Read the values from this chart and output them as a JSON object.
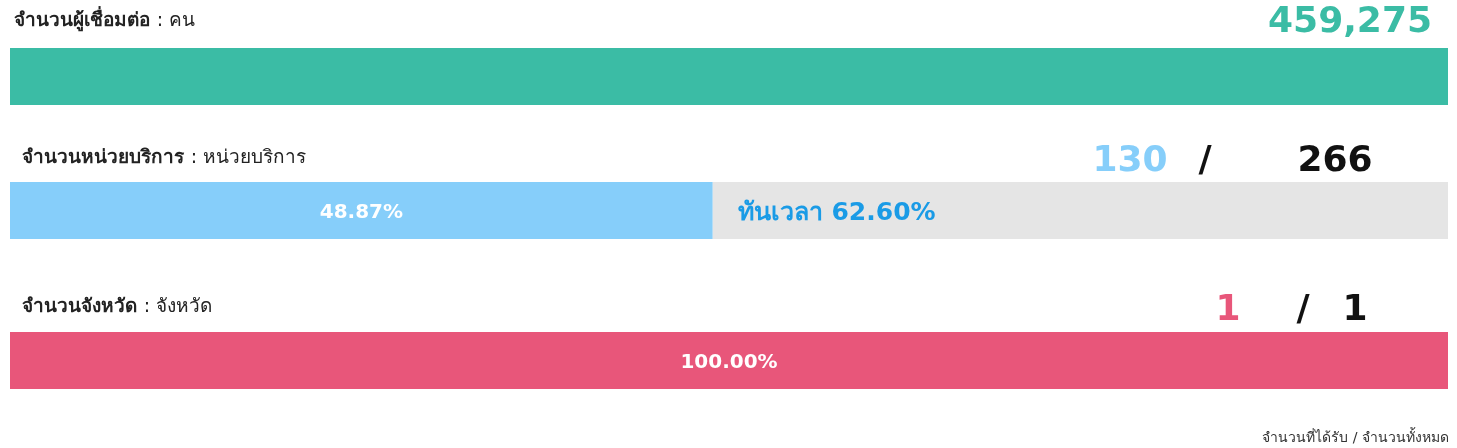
{
  "chart_data": {
    "type": "bar",
    "orientation": "horizontal",
    "stacked": true,
    "xlim": [
      0,
      100
    ],
    "categories": [
      "จำนวนผู้เชื่อมต่อ : คน",
      "จำนวนหน่วยบริการ : หน่วยบริการ",
      "จำนวนจังหวัด : จังหวัด"
    ],
    "series": [
      {
        "colors": [
          "#3bbca5",
          "#86cefa",
          "#e8567a"
        ],
        "values": [
          100,
          48.87,
          100
        ],
        "value_labels": [
          null,
          "48.87%",
          "100.00%"
        ]
      },
      {
        "color": "#e5e5e5",
        "values": [
          0,
          51.13,
          0
        ]
      }
    ],
    "annotations": [
      "459,275",
      "130 / 266",
      "1 / 1",
      "ทันเวลา 62.60%",
      "จำนวนที่ได้รับ / จำนวนทั้งหมด"
    ]
  }
}
